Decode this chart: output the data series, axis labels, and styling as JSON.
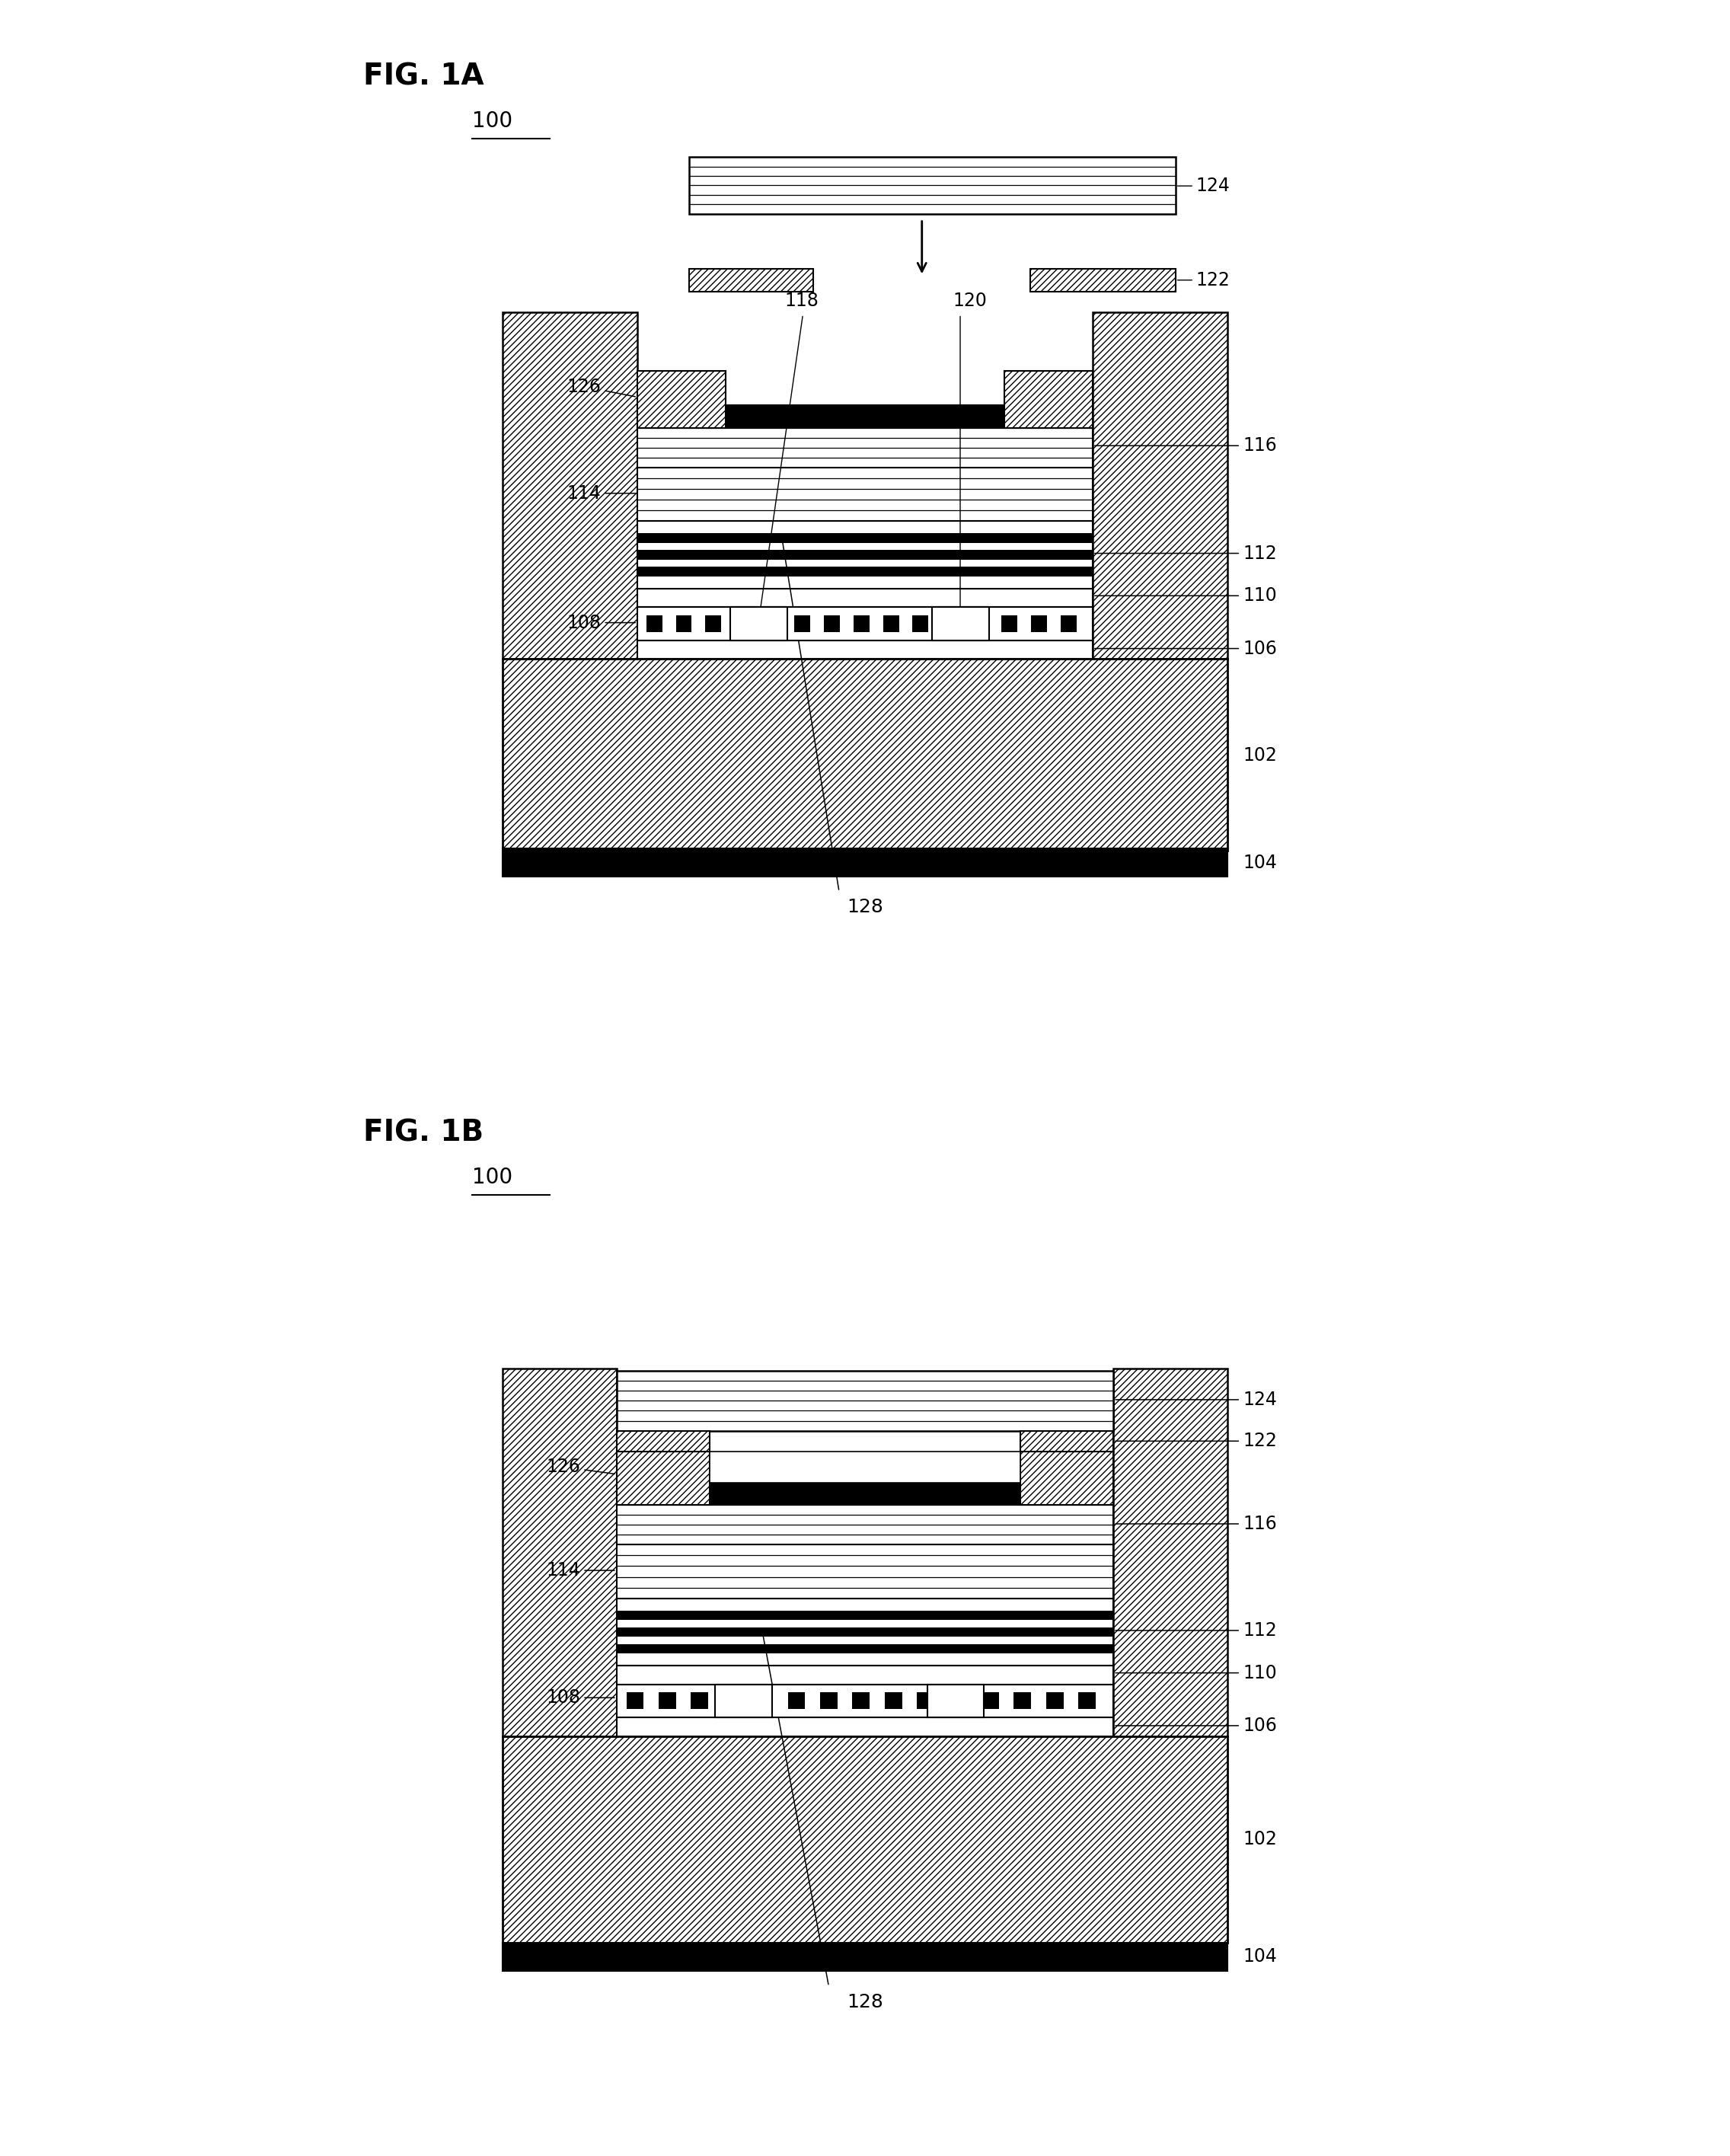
{
  "fig_title_1a": "FIG. 1A",
  "fig_title_1b": "FIG. 1B",
  "label_100": "100",
  "bg_color": "#ffffff"
}
